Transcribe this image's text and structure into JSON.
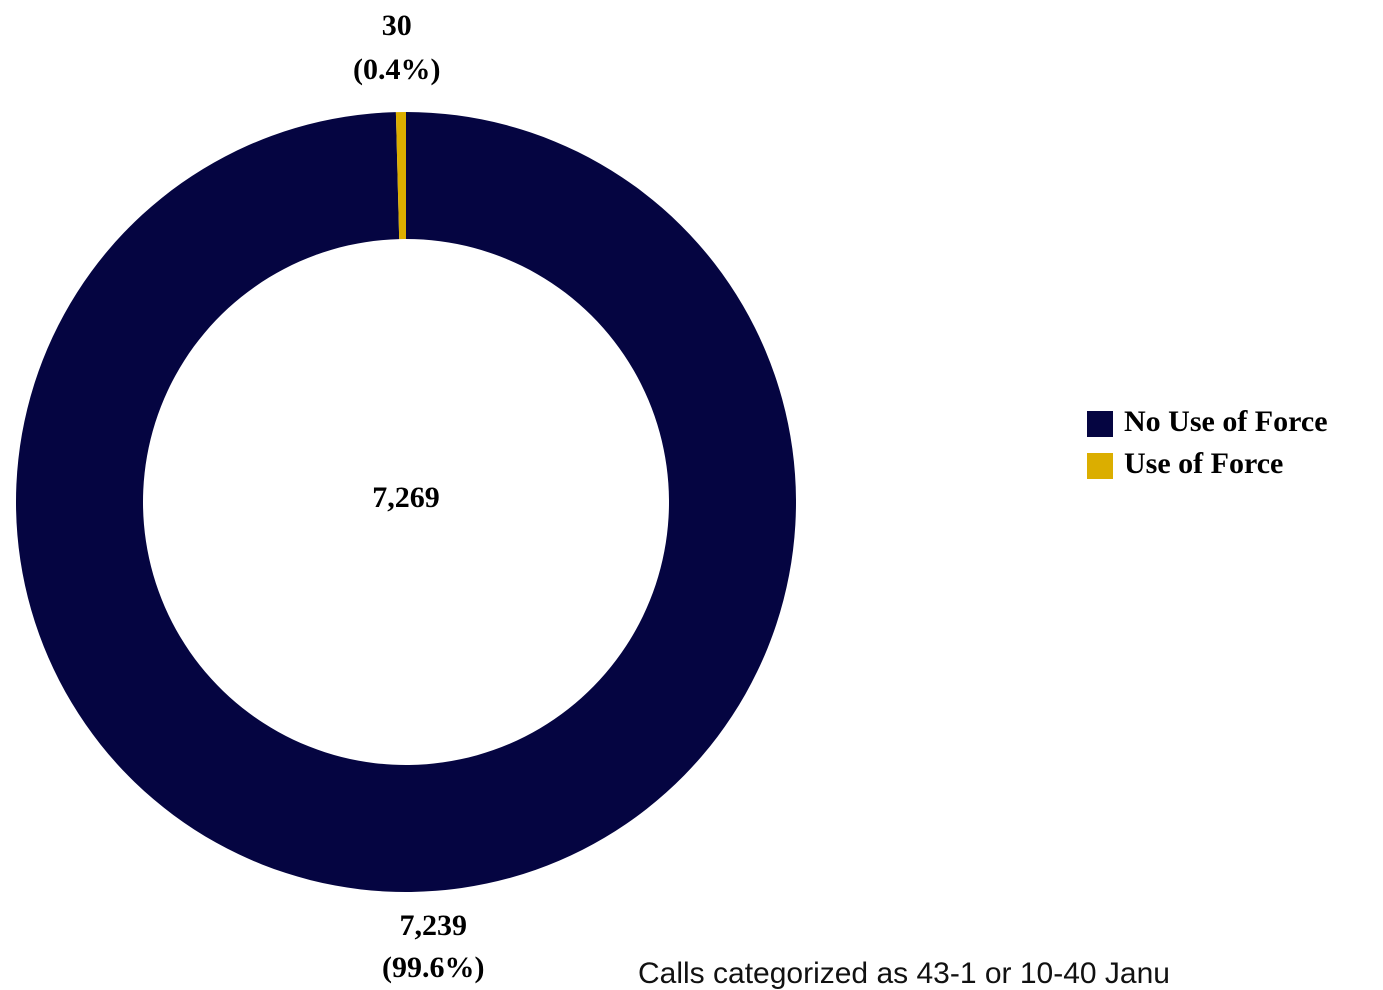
{
  "chart_data": {
    "type": "donut",
    "categories": [
      "No Use of Force",
      "Use of Force"
    ],
    "values": [
      7239,
      30
    ],
    "value_labels": [
      "7,239",
      "30"
    ],
    "percent_labels": [
      "(99.6%)",
      "(0.4%)"
    ],
    "colors": [
      "#050541",
      "#dbae00"
    ],
    "center_label": "7,269",
    "legend": "right",
    "note": "Calls categorized as 43-1 or 10-40 Janu"
  }
}
